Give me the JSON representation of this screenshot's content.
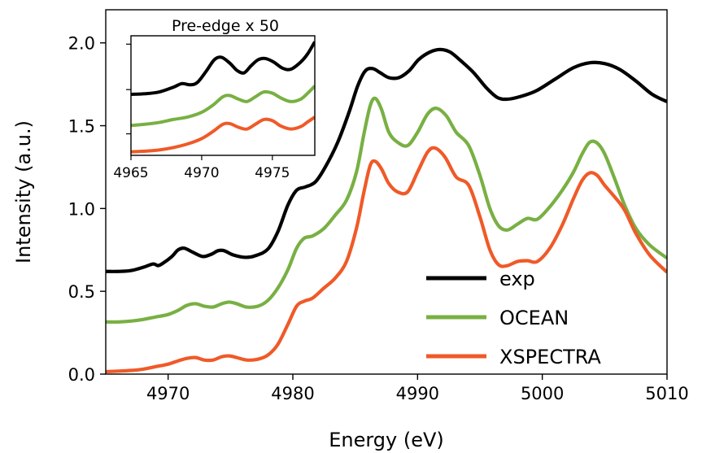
{
  "chart_data": [
    {
      "type": "line",
      "xlabel": "Energy (eV)",
      "ylabel": "Intensity (a.u.)",
      "xlim": [
        4965,
        5010
      ],
      "ylim": [
        0.0,
        2.2
      ],
      "xticks": [
        4970,
        4980,
        4990,
        5000,
        5010
      ],
      "xtick_labels": [
        "4970",
        "4980",
        "4990",
        "5000",
        "5010"
      ],
      "yticks": [
        0.0,
        0.5,
        1.0,
        1.5,
        2.0
      ],
      "ytick_labels": [
        "0.0",
        "0.5",
        "1.0",
        "1.5",
        "2.0"
      ],
      "legend": {
        "placement": "lower-right"
      },
      "series": [
        {
          "name": "exp",
          "color": "#000000",
          "points": [
            [
              4965,
              0.62
            ],
            [
              4966,
              0.62
            ],
            [
              4967,
              0.625
            ],
            [
              4968,
              0.645
            ],
            [
              4968.8,
              0.665
            ],
            [
              4969.2,
              0.655
            ],
            [
              4969.6,
              0.67
            ],
            [
              4970.3,
              0.71
            ],
            [
              4970.8,
              0.75
            ],
            [
              4971.3,
              0.76
            ],
            [
              4972,
              0.735
            ],
            [
              4972.8,
              0.71
            ],
            [
              4973.5,
              0.725
            ],
            [
              4974,
              0.745
            ],
            [
              4974.5,
              0.745
            ],
            [
              4975.2,
              0.72
            ],
            [
              4976.2,
              0.705
            ],
            [
              4977,
              0.715
            ],
            [
              4978,
              0.755
            ],
            [
              4978.8,
              0.86
            ],
            [
              4979.6,
              1.02
            ],
            [
              4980.3,
              1.11
            ],
            [
              4981,
              1.13
            ],
            [
              4981.8,
              1.16
            ],
            [
              4982.6,
              1.25
            ],
            [
              4983.6,
              1.4
            ],
            [
              4984.5,
              1.58
            ],
            [
              4985.2,
              1.74
            ],
            [
              4985.8,
              1.83
            ],
            [
              4986.4,
              1.845
            ],
            [
              4987,
              1.82
            ],
            [
              4987.7,
              1.79
            ],
            [
              4988.5,
              1.79
            ],
            [
              4989.3,
              1.83
            ],
            [
              4990.1,
              1.9
            ],
            [
              4991,
              1.945
            ],
            [
              4991.8,
              1.96
            ],
            [
              4992.6,
              1.945
            ],
            [
              4993.5,
              1.89
            ],
            [
              4994.5,
              1.82
            ],
            [
              4995.5,
              1.73
            ],
            [
              4996.4,
              1.67
            ],
            [
              4997.2,
              1.66
            ],
            [
              4998.2,
              1.675
            ],
            [
              4999.5,
              1.71
            ],
            [
              5001,
              1.78
            ],
            [
              5002.5,
              1.85
            ],
            [
              5003.8,
              1.88
            ],
            [
              5005,
              1.875
            ],
            [
              5006.2,
              1.84
            ],
            [
              5007.5,
              1.77
            ],
            [
              5008.8,
              1.69
            ],
            [
              5010,
              1.645
            ]
          ]
        },
        {
          "name": "OCEAN",
          "color": "#78B043",
          "points": [
            [
              4965,
              0.315
            ],
            [
              4966,
              0.315
            ],
            [
              4967,
              0.32
            ],
            [
              4968,
              0.33
            ],
            [
              4969,
              0.345
            ],
            [
              4970,
              0.36
            ],
            [
              4970.8,
              0.385
            ],
            [
              4971.5,
              0.415
            ],
            [
              4972.2,
              0.425
            ],
            [
              4972.9,
              0.41
            ],
            [
              4973.6,
              0.405
            ],
            [
              4974.3,
              0.425
            ],
            [
              4974.9,
              0.435
            ],
            [
              4975.5,
              0.425
            ],
            [
              4976.3,
              0.405
            ],
            [
              4977.2,
              0.41
            ],
            [
              4978,
              0.445
            ],
            [
              4978.8,
              0.52
            ],
            [
              4979.6,
              0.63
            ],
            [
              4980.3,
              0.76
            ],
            [
              4980.9,
              0.82
            ],
            [
              4981.6,
              0.835
            ],
            [
              4982.5,
              0.88
            ],
            [
              4983.4,
              0.96
            ],
            [
              4984.3,
              1.05
            ],
            [
              4985.1,
              1.22
            ],
            [
              4985.7,
              1.45
            ],
            [
              4986.2,
              1.62
            ],
            [
              4986.6,
              1.665
            ],
            [
              4987.1,
              1.6
            ],
            [
              4987.7,
              1.46
            ],
            [
              4988.4,
              1.4
            ],
            [
              4989.2,
              1.38
            ],
            [
              4990,
              1.46
            ],
            [
              4990.8,
              1.57
            ],
            [
              4991.5,
              1.605
            ],
            [
              4992.3,
              1.56
            ],
            [
              4993.1,
              1.46
            ],
            [
              4994.1,
              1.38
            ],
            [
              4995,
              1.2
            ],
            [
              4995.8,
              1.0
            ],
            [
              4996.5,
              0.895
            ],
            [
              4997.2,
              0.87
            ],
            [
              4998,
              0.905
            ],
            [
              4998.8,
              0.94
            ],
            [
              4999.6,
              0.935
            ],
            [
              5000.6,
              1.01
            ],
            [
              5001.6,
              1.11
            ],
            [
              5002.5,
              1.22
            ],
            [
              5003.2,
              1.33
            ],
            [
              5003.8,
              1.4
            ],
            [
              5004.4,
              1.395
            ],
            [
              5005,
              1.33
            ],
            [
              5005.8,
              1.18
            ],
            [
              5006.6,
              1.02
            ],
            [
              5007.5,
              0.88
            ],
            [
              5008.6,
              0.78
            ],
            [
              5010,
              0.7
            ]
          ]
        },
        {
          "name": "XSPECTRA",
          "color": "#EF5A28",
          "points": [
            [
              4965,
              0.015
            ],
            [
              4966,
              0.018
            ],
            [
              4967,
              0.022
            ],
            [
              4968,
              0.03
            ],
            [
              4969,
              0.045
            ],
            [
              4970,
              0.06
            ],
            [
              4970.8,
              0.08
            ],
            [
              4971.5,
              0.095
            ],
            [
              4972.2,
              0.1
            ],
            [
              4972.9,
              0.085
            ],
            [
              4973.6,
              0.085
            ],
            [
              4974.3,
              0.105
            ],
            [
              4974.9,
              0.11
            ],
            [
              4975.5,
              0.1
            ],
            [
              4976.3,
              0.085
            ],
            [
              4977.2,
              0.09
            ],
            [
              4978,
              0.115
            ],
            [
              4978.8,
              0.18
            ],
            [
              4979.6,
              0.3
            ],
            [
              4980.3,
              0.41
            ],
            [
              4980.9,
              0.44
            ],
            [
              4981.6,
              0.46
            ],
            [
              4982.5,
              0.52
            ],
            [
              4983.4,
              0.58
            ],
            [
              4984.3,
              0.68
            ],
            [
              4985.1,
              0.88
            ],
            [
              4985.7,
              1.1
            ],
            [
              4986.2,
              1.26
            ],
            [
              4986.6,
              1.285
            ],
            [
              4987.1,
              1.24
            ],
            [
              4987.7,
              1.15
            ],
            [
              4988.4,
              1.1
            ],
            [
              4989.2,
              1.1
            ],
            [
              4990,
              1.22
            ],
            [
              4990.8,
              1.34
            ],
            [
              4991.4,
              1.365
            ],
            [
              4992.2,
              1.31
            ],
            [
              4993.1,
              1.19
            ],
            [
              4994.1,
              1.14
            ],
            [
              4995,
              0.95
            ],
            [
              4995.8,
              0.75
            ],
            [
              4996.5,
              0.66
            ],
            [
              4997.2,
              0.655
            ],
            [
              4998,
              0.68
            ],
            [
              4998.8,
              0.685
            ],
            [
              4999.6,
              0.68
            ],
            [
              5000.6,
              0.76
            ],
            [
              5001.6,
              0.9
            ],
            [
              5002.5,
              1.06
            ],
            [
              5003.2,
              1.17
            ],
            [
              5003.8,
              1.215
            ],
            [
              5004.4,
              1.2
            ],
            [
              5005,
              1.14
            ],
            [
              5005.8,
              1.07
            ],
            [
              5006.6,
              0.99
            ],
            [
              5007.5,
              0.85
            ],
            [
              5008.6,
              0.72
            ],
            [
              5010,
              0.615
            ]
          ]
        }
      ]
    },
    {
      "type": "line",
      "title": "Pre-edge x 50",
      "xlim": [
        4965,
        4978
      ],
      "ylim": [
        0.0,
        1.0
      ],
      "xticks": [
        4965,
        4970,
        4975
      ],
      "xtick_labels": [
        "4965",
        "4970",
        "4975"
      ],
      "series": [
        {
          "name": "exp",
          "color": "#000000",
          "points": [
            [
              4965,
              0.51
            ],
            [
              4966,
              0.515
            ],
            [
              4967,
              0.53
            ],
            [
              4968,
              0.57
            ],
            [
              4968.6,
              0.6
            ],
            [
              4969.2,
              0.59
            ],
            [
              4969.7,
              0.61
            ],
            [
              4970.3,
              0.7
            ],
            [
              4970.9,
              0.8
            ],
            [
              4971.4,
              0.82
            ],
            [
              4972,
              0.77
            ],
            [
              4972.5,
              0.71
            ],
            [
              4973,
              0.69
            ],
            [
              4973.5,
              0.75
            ],
            [
              4974,
              0.8
            ],
            [
              4974.5,
              0.81
            ],
            [
              4975.1,
              0.78
            ],
            [
              4975.7,
              0.73
            ],
            [
              4976.3,
              0.72
            ],
            [
              4977,
              0.78
            ],
            [
              4977.5,
              0.85
            ],
            [
              4978,
              0.95
            ]
          ]
        },
        {
          "name": "OCEAN",
          "color": "#78B043",
          "points": [
            [
              4965,
              0.25
            ],
            [
              4966,
              0.26
            ],
            [
              4967,
              0.275
            ],
            [
              4968,
              0.3
            ],
            [
              4969,
              0.32
            ],
            [
              4970,
              0.36
            ],
            [
              4970.8,
              0.42
            ],
            [
              4971.5,
              0.49
            ],
            [
              4972,
              0.5
            ],
            [
              4972.6,
              0.47
            ],
            [
              4973.2,
              0.45
            ],
            [
              4973.8,
              0.49
            ],
            [
              4974.4,
              0.53
            ],
            [
              4975,
              0.52
            ],
            [
              4975.6,
              0.48
            ],
            [
              4976.3,
              0.45
            ],
            [
              4977,
              0.47
            ],
            [
              4977.5,
              0.52
            ],
            [
              4978,
              0.58
            ]
          ]
        },
        {
          "name": "XSPECTRA",
          "color": "#EF5A28",
          "points": [
            [
              4965,
              0.03
            ],
            [
              4966,
              0.035
            ],
            [
              4967,
              0.045
            ],
            [
              4968,
              0.065
            ],
            [
              4969,
              0.095
            ],
            [
              4970,
              0.14
            ],
            [
              4970.8,
              0.2
            ],
            [
              4971.5,
              0.26
            ],
            [
              4972,
              0.265
            ],
            [
              4972.6,
              0.235
            ],
            [
              4973.2,
              0.22
            ],
            [
              4973.8,
              0.26
            ],
            [
              4974.4,
              0.3
            ],
            [
              4975,
              0.29
            ],
            [
              4975.6,
              0.245
            ],
            [
              4976.3,
              0.22
            ],
            [
              4977,
              0.24
            ],
            [
              4977.5,
              0.28
            ],
            [
              4978,
              0.32
            ]
          ]
        }
      ]
    }
  ]
}
